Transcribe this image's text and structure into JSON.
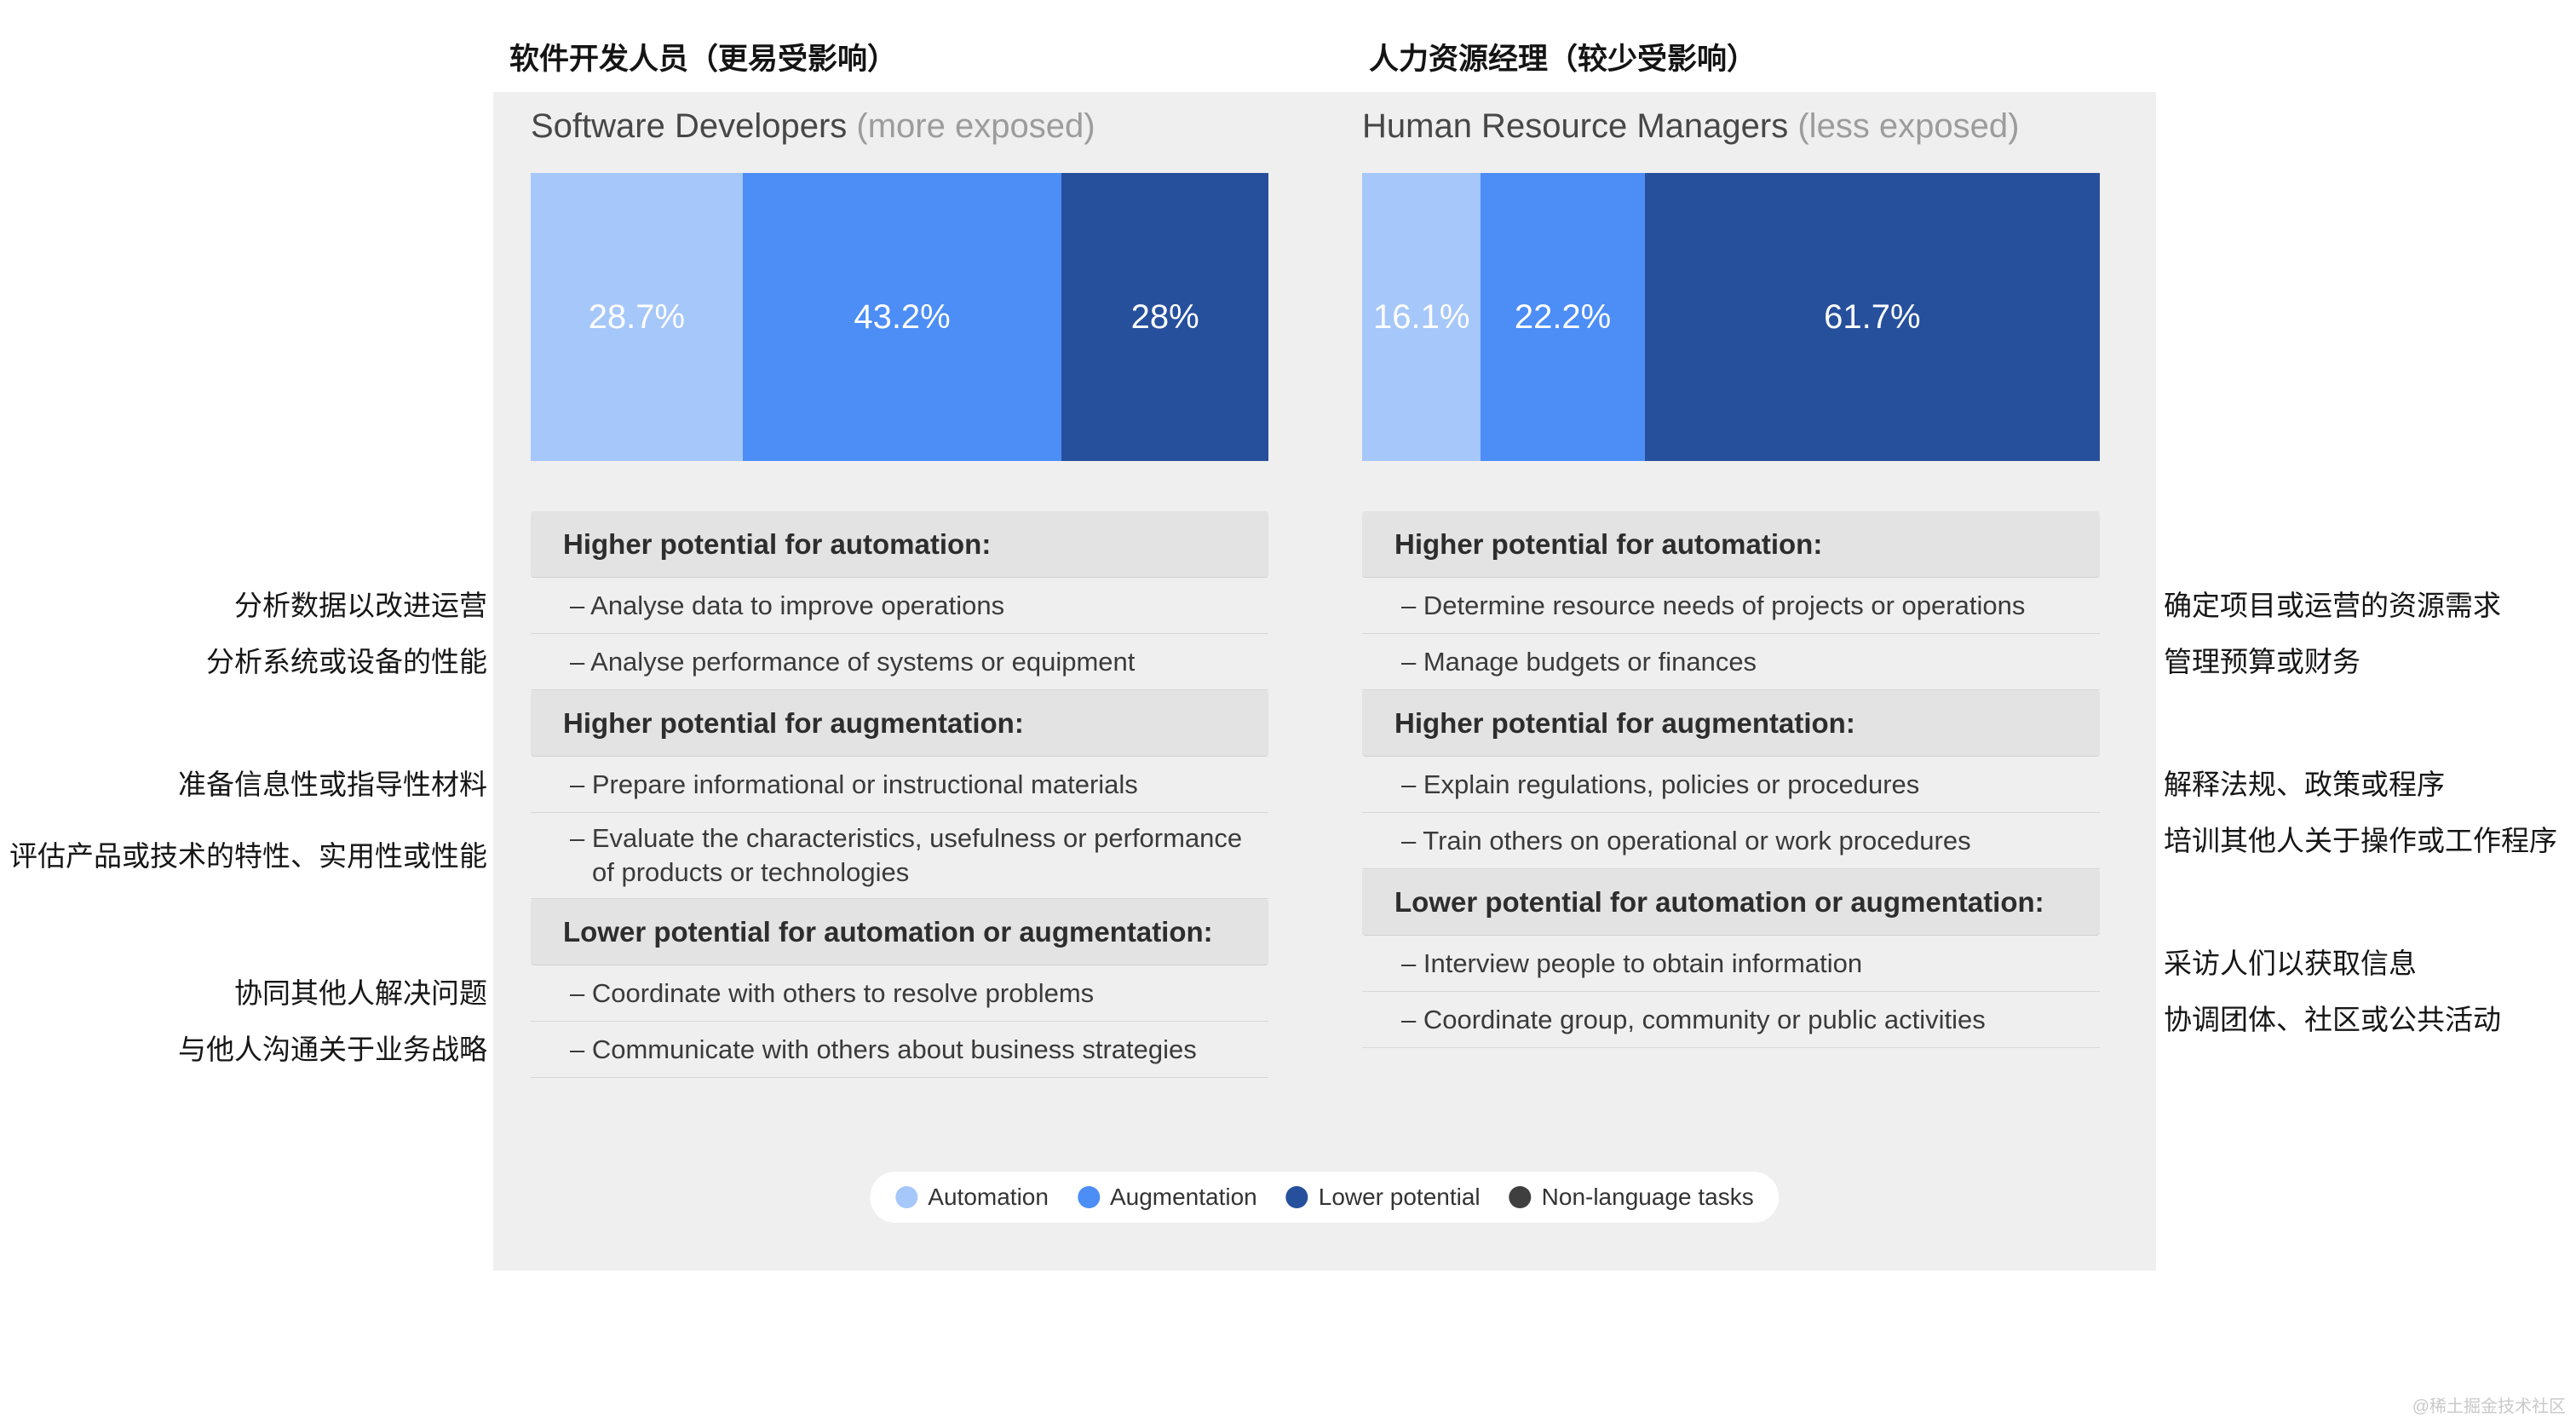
{
  "titles": {
    "left_zh": "软件开发人员（更易受影响）",
    "right_zh": "人力资源经理（较少受影响）"
  },
  "panels": [
    {
      "title": "Software Developers",
      "subtitle": "(more exposed)",
      "segments": [
        {
          "label": "28.7%",
          "value": 28.7,
          "color": "#a6c7f9"
        },
        {
          "label": "43.2%",
          "value": 43.2,
          "color": "#4c8df6"
        },
        {
          "label": "28%",
          "value": 28.0,
          "color": "#26509c"
        }
      ],
      "sections": [
        {
          "header": "Higher potential for automation:",
          "items": [
            {
              "text": "– Analyse data to improve operations",
              "zh": "分析数据以改进运营"
            },
            {
              "text": "– Analyse performance of systems or equipment",
              "zh": "分析系统或设备的性能"
            }
          ]
        },
        {
          "header": "Higher potential for augmentation:",
          "items": [
            {
              "text": "– Prepare informational or instructional materials",
              "zh": "准备信息性或指导性材料"
            },
            {
              "text": "– Evaluate the characteristics, usefulness or performance of products or technologies",
              "zh": "评估产品或技术的特性、实用性或性能"
            }
          ]
        },
        {
          "header": "Lower potential for automation or augmentation:",
          "items": [
            {
              "text": "– Coordinate with others to resolve problems",
              "zh": "协同其他人解决问题"
            },
            {
              "text": "– Communicate with others about business strategies",
              "zh": "与他人沟通关于业务战略"
            }
          ]
        }
      ]
    },
    {
      "title": "Human Resource Managers",
      "subtitle": "(less exposed)",
      "segments": [
        {
          "label": "16.1%",
          "value": 16.1,
          "color": "#a6c7f9"
        },
        {
          "label": "22.2%",
          "value": 22.2,
          "color": "#4c8df6"
        },
        {
          "label": "61.7%",
          "value": 61.7,
          "color": "#26509c"
        }
      ],
      "sections": [
        {
          "header": "Higher potential for automation:",
          "items": [
            {
              "text": "– Determine resource needs of projects or operations",
              "zh": "确定项目或运营的资源需求"
            },
            {
              "text": "– Manage budgets or finances",
              "zh": "管理预算或财务"
            }
          ]
        },
        {
          "header": "Higher potential for augmentation:",
          "items": [
            {
              "text": "– Explain regulations, policies or procedures",
              "zh": "解释法规、政策或程序"
            },
            {
              "text": "– Train others on operational or work procedures",
              "zh": "培训其他人关于操作或工作程序"
            }
          ]
        },
        {
          "header": "Lower potential for automation or augmentation:",
          "items": [
            {
              "text": "– Interview people to obtain information",
              "zh": "采访人们以获取信息"
            },
            {
              "text": "– Coordinate group, community or public activities",
              "zh": "协调团体、社区或公共活动"
            }
          ]
        }
      ]
    }
  ],
  "legend": [
    {
      "label": "Automation",
      "color": "#a6c7f9"
    },
    {
      "label": "Augmentation",
      "color": "#4c8df6"
    },
    {
      "label": "Lower potential",
      "color": "#26509c"
    },
    {
      "label": "Non-language tasks",
      "color": "#3f3f3f"
    }
  ],
  "watermark": "@稀土掘金技术社区",
  "chart_data": {
    "type": "bar",
    "variant": "horizontal-stacked",
    "categories": [
      "Software Developers (more exposed)",
      "Human Resource Managers (less exposed)"
    ],
    "series": [
      {
        "name": "Automation",
        "values": [
          28.7,
          16.1
        ],
        "color": "#a6c7f9"
      },
      {
        "name": "Augmentation",
        "values": [
          43.2,
          22.2
        ],
        "color": "#4c8df6"
      },
      {
        "name": "Lower potential",
        "values": [
          28.0,
          61.7
        ],
        "color": "#26509c"
      }
    ],
    "legend_entries": [
      "Automation",
      "Augmentation",
      "Lower potential",
      "Non-language tasks"
    ],
    "legend_position": "bottom",
    "value_unit": "%",
    "data_labels_shown": true,
    "xlim": [
      0,
      100
    ]
  }
}
